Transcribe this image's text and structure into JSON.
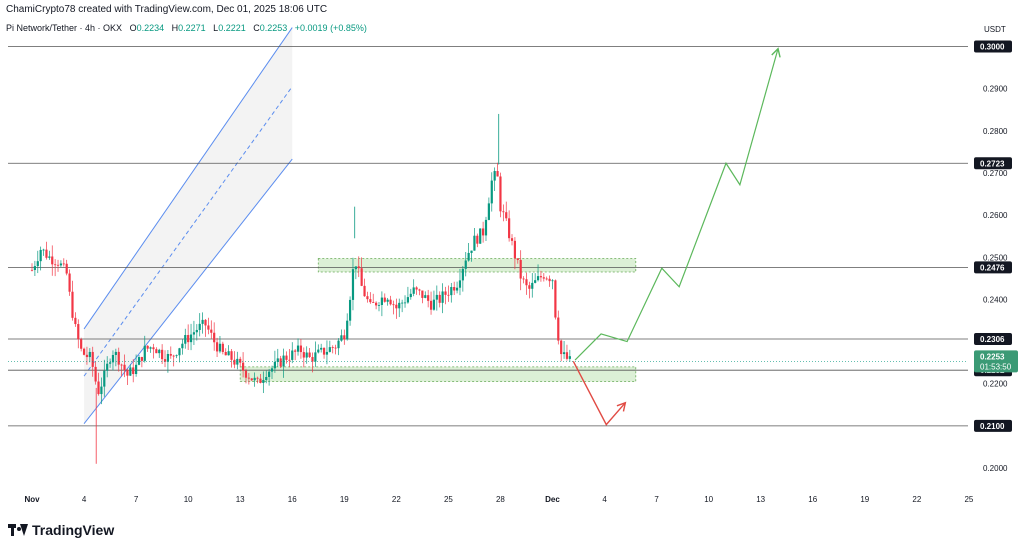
{
  "header": {
    "credit": "ChamiCrypto78 created with TradingView.com, Dec 01, 2025 18:06 UTC"
  },
  "symbol": {
    "title": "Pi Network/Tether · 4h · OKX",
    "open_label": "O",
    "open": "0.2234",
    "high_label": "H",
    "high": "0.2271",
    "low_label": "L",
    "low": "0.2221",
    "close_label": "C",
    "close": "0.2253",
    "change": "+0.0019 (+0.85%)"
  },
  "footer": {
    "brand": "TradingView"
  },
  "colors": {
    "up": "#089981",
    "down": "#f23645",
    "channel": "#5b8def",
    "zone_fill": "#d8eed2",
    "zone_border": "#6aaa5a",
    "projection_up": "#5cb85c",
    "projection_down": "#e14b44",
    "tag_bg": "#131722",
    "current_tag_bg": "#3b9a75"
  },
  "chart_data": {
    "type": "candlestick",
    "title": "Pi Network/Tether · 4h · OKX",
    "ylabel": "USDT",
    "ylim": [
      0.195,
      0.307
    ],
    "y_ticks": [
      "0.2000",
      "0.2100",
      "0.2200",
      "0.2300",
      "0.2400",
      "0.2500",
      "0.2600",
      "0.2700",
      "0.2800",
      "0.2900",
      "0.3000"
    ],
    "x_ticks": [
      "Nov",
      "4",
      "7",
      "10",
      "13",
      "16",
      "19",
      "22",
      "25",
      "28",
      "Dec",
      "4",
      "7",
      "10",
      "13",
      "16",
      "19",
      "22",
      "25"
    ],
    "levels": [
      "0.3000",
      "0.2723",
      "0.2476",
      "0.2306",
      "0.2232",
      "0.2100"
    ],
    "current_price": {
      "value": "0.2253",
      "countdown": "01:53:50"
    },
    "close_path": [
      [
        1,
        0.247
      ],
      [
        1.5,
        0.252
      ],
      [
        2,
        0.25
      ],
      [
        2.5,
        0.249
      ],
      [
        3,
        0.246
      ],
      [
        3.2,
        0.24
      ],
      [
        3.5,
        0.233
      ],
      [
        3.8,
        0.228
      ],
      [
        4,
        0.227
      ],
      [
        4.4,
        0.226
      ],
      [
        4.8,
        0.218
      ],
      [
        5.2,
        0.222
      ],
      [
        5.6,
        0.228
      ],
      [
        6,
        0.226
      ],
      [
        6.5,
        0.222
      ],
      [
        7,
        0.224
      ],
      [
        7.5,
        0.228
      ],
      [
        8,
        0.229
      ],
      [
        8.5,
        0.227
      ],
      [
        9,
        0.226
      ],
      [
        9.5,
        0.229
      ],
      [
        10,
        0.231
      ],
      [
        10.5,
        0.233
      ],
      [
        11,
        0.234
      ],
      [
        11.5,
        0.23
      ],
      [
        12,
        0.227
      ],
      [
        12.5,
        0.226
      ],
      [
        13,
        0.224
      ],
      [
        13.5,
        0.222
      ],
      [
        14,
        0.22
      ],
      [
        14.5,
        0.223
      ],
      [
        15,
        0.224
      ],
      [
        15.5,
        0.226
      ],
      [
        16,
        0.227
      ],
      [
        16.5,
        0.228
      ],
      [
        17,
        0.226
      ],
      [
        17.5,
        0.227
      ],
      [
        18,
        0.228
      ],
      [
        18.5,
        0.229
      ],
      [
        19,
        0.232
      ],
      [
        19.3,
        0.24
      ],
      [
        19.6,
        0.25
      ],
      [
        20,
        0.243
      ],
      [
        20.5,
        0.238
      ],
      [
        21,
        0.24
      ],
      [
        21.5,
        0.241
      ],
      [
        22,
        0.238
      ],
      [
        22.5,
        0.24
      ],
      [
        23,
        0.242
      ],
      [
        23.5,
        0.241
      ],
      [
        24,
        0.239
      ],
      [
        24.5,
        0.24
      ],
      [
        25,
        0.242
      ],
      [
        25.5,
        0.244
      ],
      [
        26,
        0.25
      ],
      [
        26.5,
        0.254
      ],
      [
        27,
        0.256
      ],
      [
        27.5,
        0.268
      ],
      [
        27.8,
        0.27
      ],
      [
        28,
        0.262
      ],
      [
        28.4,
        0.257
      ],
      [
        28.8,
        0.251
      ],
      [
        29.2,
        0.245
      ],
      [
        29.6,
        0.242
      ],
      [
        30,
        0.244
      ],
      [
        30.5,
        0.246
      ],
      [
        31,
        0.245
      ],
      [
        31.2,
        0.235
      ],
      [
        31.5,
        0.227
      ],
      [
        31.8,
        0.226
      ],
      [
        32,
        0.2253
      ]
    ],
    "channel": {
      "upper": [
        [
          4,
          0.233
        ],
        [
          16,
          0.3045
        ]
      ],
      "middle": [
        [
          4,
          0.2218
        ],
        [
          16,
          0.2905
        ]
      ],
      "lower": [
        [
          4,
          0.2105
        ],
        [
          16,
          0.2733
        ]
      ]
    },
    "zones": [
      {
        "from_x": 17.5,
        "to_x": 35.8,
        "low": 0.2465,
        "high": 0.2497
      },
      {
        "from_x": 13,
        "to_x": 35.8,
        "low": 0.2205,
        "high": 0.224
      }
    ],
    "projection_up": [
      [
        32.3,
        0.2256
      ],
      [
        33.8,
        0.2318
      ],
      [
        35.3,
        0.23
      ],
      [
        37.3,
        0.2474
      ],
      [
        38.3,
        0.243
      ],
      [
        41,
        0.2723
      ],
      [
        41.8,
        0.2672
      ],
      [
        44,
        0.2995
      ]
    ],
    "projection_down": [
      [
        32.2,
        0.2253
      ],
      [
        34.1,
        0.2103
      ],
      [
        35.2,
        0.2155
      ]
    ]
  }
}
